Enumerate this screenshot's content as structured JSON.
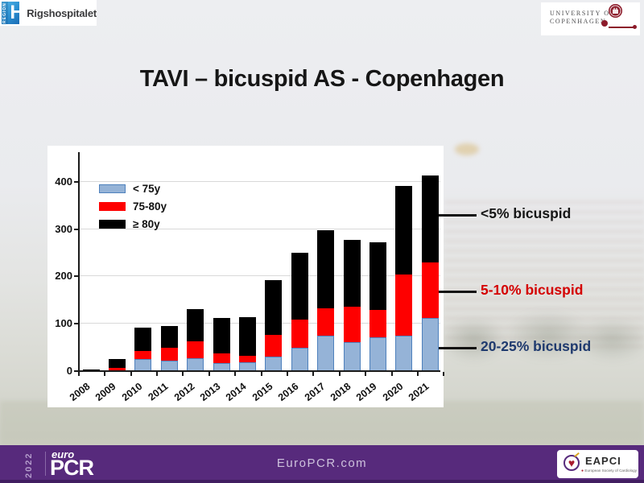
{
  "slide": {
    "title": "TAVI – bicuspid AS - Copenhagen",
    "header": {
      "rigshospitalet": {
        "region_label": "REGION",
        "h_letter": "H",
        "name": "Rigshospitalet"
      },
      "university": {
        "line1": "UNIVERSITY OF",
        "line2": "COPENHAGEN"
      }
    },
    "annotations": [
      {
        "label": "<5% bicuspid",
        "color": "#161616"
      },
      {
        "label": "5-10% bicuspid",
        "color": "#d40000"
      },
      {
        "label": "20-25% bicuspid",
        "color": "#1f3a6e"
      }
    ],
    "footer": {
      "year": "2022",
      "logo_top": "euro",
      "logo_main": "PCR",
      "website": "EuroPCR.com",
      "eapci_name": "EAPCI",
      "eapci_subtitle": "European Society of Cardiology"
    }
  },
  "chart_data": {
    "type": "bar",
    "stacked": true,
    "title": "",
    "xlabel": "",
    "ylabel": "",
    "categories": [
      "2008",
      "2009",
      "2010",
      "2011",
      "2012",
      "2013",
      "2014",
      "2015",
      "2016",
      "2017",
      "2018",
      "2019",
      "2020",
      "2021"
    ],
    "series": [
      {
        "name": "< 75y",
        "color": "#95b3d7",
        "border": "#4f81bd",
        "values": [
          1,
          1,
          25,
          22,
          28,
          17,
          18,
          30,
          50,
          75,
          62,
          72,
          75,
          112
        ]
      },
      {
        "name": "75-80y",
        "color": "#fe0000",
        "border": null,
        "values": [
          2,
          5,
          17,
          27,
          35,
          20,
          14,
          46,
          58,
          58,
          74,
          58,
          129,
          117
        ]
      },
      {
        "name": "≥ 80y",
        "color": "#000000",
        "border": null,
        "values": [
          1,
          20,
          49,
          46,
          68,
          75,
          82,
          116,
          142,
          165,
          141,
          142,
          188,
          185
        ]
      }
    ],
    "totals": [
      4,
      26,
      91,
      95,
      131,
      112,
      114,
      192,
      250,
      298,
      277,
      272,
      392,
      414
    ],
    "ylim": [
      0,
      450
    ],
    "yticks": [
      0,
      100,
      200,
      300,
      400
    ],
    "grid": true,
    "legend_position": "top-left",
    "gridline_color": "#d9d9d9"
  }
}
